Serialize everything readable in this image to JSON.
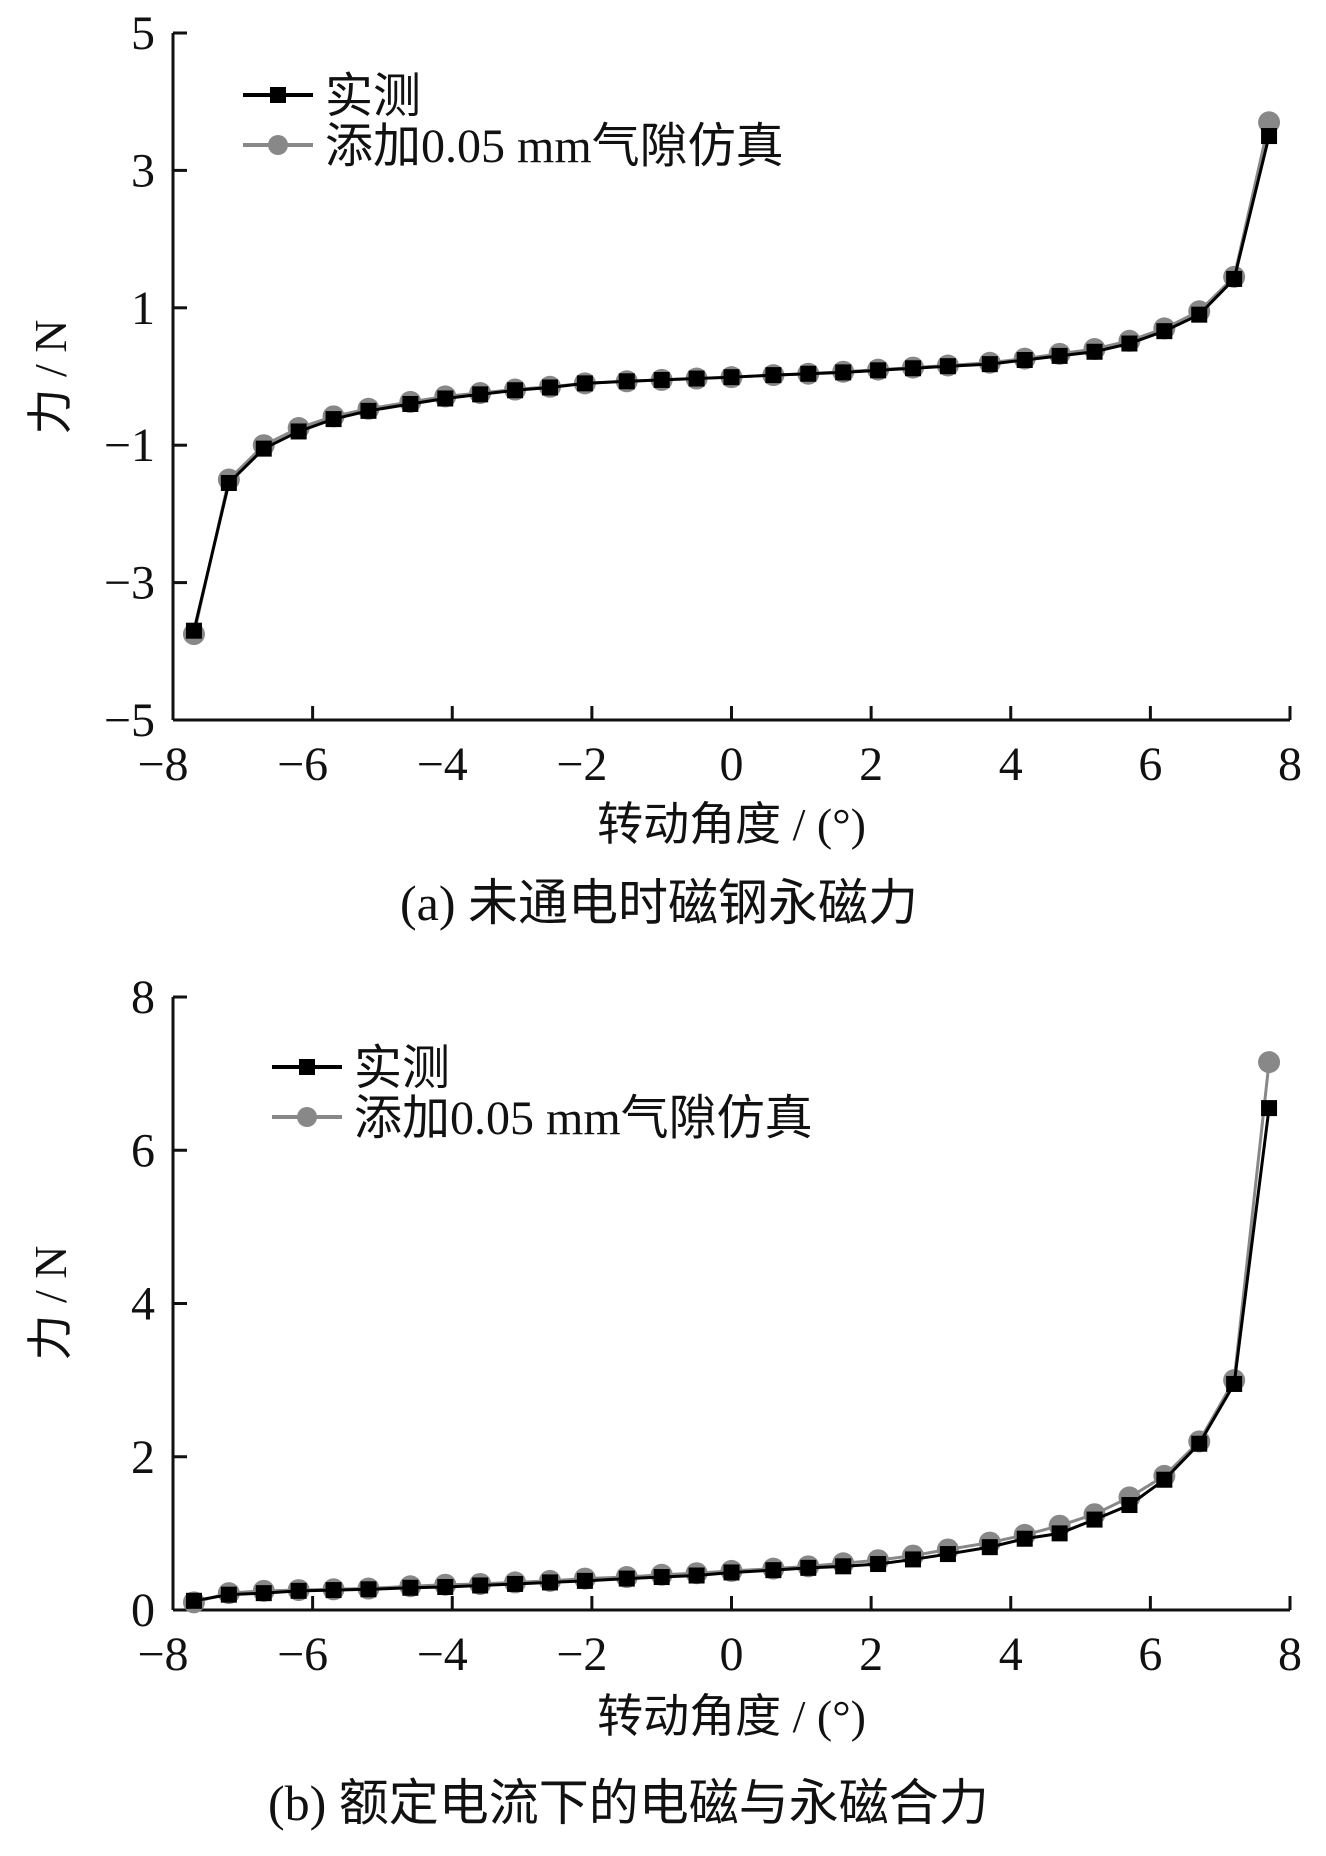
{
  "colors": {
    "measured": "#000000",
    "simulated": "#888888",
    "axis": "#111111"
  },
  "chart_data": [
    {
      "type": "line",
      "caption": "(a)  未通电时磁钢永磁力",
      "xlabel": "转动角度 / (°)",
      "ylabel": "力 / N",
      "xlim": [
        -8,
        8
      ],
      "ylim": [
        -5,
        5
      ],
      "xticks": [
        "−8",
        "−6",
        "−4",
        "−2",
        "0",
        "2",
        "4",
        "6",
        "8"
      ],
      "yticks": [
        "5",
        "3",
        "1",
        "−1",
        "−3",
        "−5"
      ],
      "legend_position": "top-left",
      "x": [
        -7.7,
        -7.2,
        -6.7,
        -6.2,
        -5.7,
        -5.2,
        -4.6,
        -4.1,
        -3.6,
        -3.1,
        -2.6,
        -2.1,
        -1.5,
        -1.0,
        -0.5,
        0.0,
        0.6,
        1.1,
        1.6,
        2.1,
        2.6,
        3.1,
        3.7,
        4.2,
        4.7,
        5.2,
        5.7,
        6.2,
        6.7,
        7.2,
        7.7
      ],
      "series": [
        {
          "name": "实测",
          "marker": "square",
          "values": [
            -3.7,
            -1.55,
            -1.05,
            -0.8,
            -0.62,
            -0.5,
            -0.4,
            -0.32,
            -0.26,
            -0.2,
            -0.16,
            -0.1,
            -0.07,
            -0.05,
            -0.03,
            -0.01,
            0.02,
            0.04,
            0.06,
            0.09,
            0.12,
            0.15,
            0.18,
            0.24,
            0.3,
            0.36,
            0.48,
            0.66,
            0.9,
            1.42,
            3.5
          ]
        },
        {
          "name": "添加0.05 mm气隙仿真",
          "marker": "circle",
          "values": [
            -3.75,
            -1.5,
            -1.0,
            -0.75,
            -0.58,
            -0.47,
            -0.37,
            -0.29,
            -0.24,
            -0.19,
            -0.15,
            -0.1,
            -0.07,
            -0.05,
            -0.03,
            -0.01,
            0.02,
            0.04,
            0.07,
            0.1,
            0.13,
            0.16,
            0.2,
            0.26,
            0.33,
            0.4,
            0.52,
            0.7,
            0.95,
            1.45,
            3.7
          ]
        }
      ]
    },
    {
      "type": "line",
      "caption": "(b)  额定电流下的电磁与永磁合力",
      "xlabel": "转动角度 / (°)",
      "ylabel": "力 / N",
      "xlim": [
        -8,
        8
      ],
      "ylim": [
        0,
        8
      ],
      "xticks": [
        "−8",
        "−6",
        "−4",
        "−2",
        "0",
        "2",
        "4",
        "6",
        "8"
      ],
      "yticks": [
        "8",
        "6",
        "4",
        "2",
        "0"
      ],
      "legend_position": "top-left",
      "x": [
        -7.7,
        -7.2,
        -6.7,
        -6.2,
        -5.7,
        -5.2,
        -4.6,
        -4.1,
        -3.6,
        -3.1,
        -2.6,
        -2.1,
        -1.5,
        -1.0,
        -0.5,
        0.0,
        0.6,
        1.1,
        1.6,
        2.1,
        2.6,
        3.1,
        3.7,
        4.2,
        4.7,
        5.2,
        5.7,
        6.2,
        6.7,
        7.2,
        7.7
      ],
      "series": [
        {
          "name": "实测",
          "marker": "square",
          "values": [
            0.12,
            0.2,
            0.22,
            0.25,
            0.26,
            0.27,
            0.29,
            0.3,
            0.32,
            0.34,
            0.36,
            0.38,
            0.41,
            0.43,
            0.45,
            0.49,
            0.52,
            0.55,
            0.57,
            0.6,
            0.66,
            0.73,
            0.82,
            0.93,
            1.0,
            1.18,
            1.37,
            1.7,
            2.17,
            2.95,
            6.55
          ]
        },
        {
          "name": "添加0.05 mm气隙仿真",
          "marker": "circle",
          "values": [
            0.1,
            0.22,
            0.25,
            0.26,
            0.27,
            0.28,
            0.31,
            0.33,
            0.34,
            0.36,
            0.38,
            0.41,
            0.43,
            0.46,
            0.48,
            0.51,
            0.54,
            0.57,
            0.61,
            0.65,
            0.71,
            0.79,
            0.88,
            0.98,
            1.1,
            1.25,
            1.47,
            1.75,
            2.2,
            3.0,
            7.15
          ]
        }
      ]
    }
  ]
}
